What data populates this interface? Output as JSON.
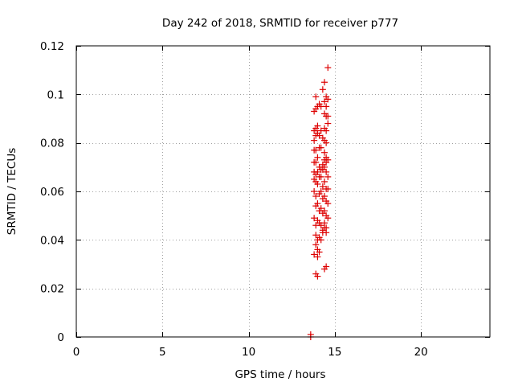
{
  "chart_data": {
    "type": "scatter",
    "title": "Day 242 of 2018, SRMTID for receiver p777",
    "xlabel": "GPS time / hours",
    "ylabel": "SRMTID / TECUs",
    "xlim": [
      0,
      24
    ],
    "ylim": [
      0,
      0.12
    ],
    "grid": true,
    "xticks": [
      0,
      5,
      10,
      15,
      20
    ],
    "xtick_labels": [
      "0",
      "5",
      "10",
      "15",
      "20"
    ],
    "yticks": [
      0,
      0.02,
      0.04,
      0.06,
      0.08,
      0.1,
      0.12
    ],
    "ytick_labels": [
      "0",
      "0.02",
      "0.04",
      "0.06",
      "0.08",
      "0.1",
      "0.12"
    ],
    "colors": {
      "points": "#dd0000",
      "grid": "#a0a0a0",
      "frame": "#000000"
    },
    "marker": "plus",
    "series": [
      {
        "name": "SRMTID",
        "x": [
          14.6,
          14.4,
          14.3,
          14.5,
          13.9,
          14.1,
          14.6,
          14.2,
          14.4,
          14.5,
          13.9,
          14.0,
          13.8,
          14.6,
          14.4,
          14.5,
          13.9,
          14.0,
          13.8,
          14.6,
          14.4,
          14.5,
          14.1,
          14.2,
          13.8,
          14.0,
          13.9,
          14.3,
          14.4,
          14.5,
          14.1,
          13.8,
          13.9,
          14.2,
          14.4,
          14.5,
          14.6,
          14.0,
          13.8,
          13.9,
          14.3,
          14.4,
          14.5,
          14.1,
          14.2,
          14.0,
          13.8,
          13.9,
          14.3,
          14.4,
          14.5,
          14.6,
          14.1,
          13.8,
          14.2,
          13.9,
          14.4,
          14.0,
          14.3,
          14.5,
          14.6,
          13.8,
          14.2,
          14.1,
          13.9,
          14.4,
          14.3,
          14.5,
          14.6,
          14.0,
          13.9,
          14.2,
          14.1,
          14.4,
          14.3,
          14.5,
          13.8,
          14.6,
          14.0,
          14.1,
          13.9,
          14.2,
          14.4,
          14.3,
          14.5,
          14.1,
          14.0,
          14.2,
          14.3,
          14.4,
          14.5,
          13.9,
          13.9,
          14.0,
          14.1,
          13.8,
          14.0,
          14.5,
          14.4,
          13.9,
          14.0,
          13.6,
          13.6
        ],
        "y": [
          0.111,
          0.105,
          0.102,
          0.099,
          0.099,
          0.096,
          0.098,
          0.095,
          0.097,
          0.095,
          0.094,
          0.095,
          0.093,
          0.091,
          0.092,
          0.091,
          0.086,
          0.087,
          0.085,
          0.088,
          0.086,
          0.085,
          0.083,
          0.085,
          0.081,
          0.084,
          0.083,
          0.082,
          0.081,
          0.08,
          0.078,
          0.077,
          0.077,
          0.078,
          0.076,
          0.074,
          0.073,
          0.074,
          0.072,
          0.072,
          0.071,
          0.073,
          0.072,
          0.07,
          0.069,
          0.068,
          0.068,
          0.067,
          0.069,
          0.07,
          0.068,
          0.066,
          0.066,
          0.065,
          0.066,
          0.064,
          0.064,
          0.063,
          0.062,
          0.061,
          0.061,
          0.06,
          0.06,
          0.059,
          0.058,
          0.058,
          0.057,
          0.056,
          0.055,
          0.055,
          0.054,
          0.053,
          0.052,
          0.052,
          0.051,
          0.05,
          0.049,
          0.049,
          0.048,
          0.047,
          0.046,
          0.046,
          0.045,
          0.044,
          0.043,
          0.041,
          0.04,
          0.04,
          0.043,
          0.047,
          0.045,
          0.042,
          0.038,
          0.036,
          0.035,
          0.034,
          0.033,
          0.029,
          0.028,
          0.026,
          0.025,
          0.001,
          0.0
        ]
      }
    ]
  }
}
